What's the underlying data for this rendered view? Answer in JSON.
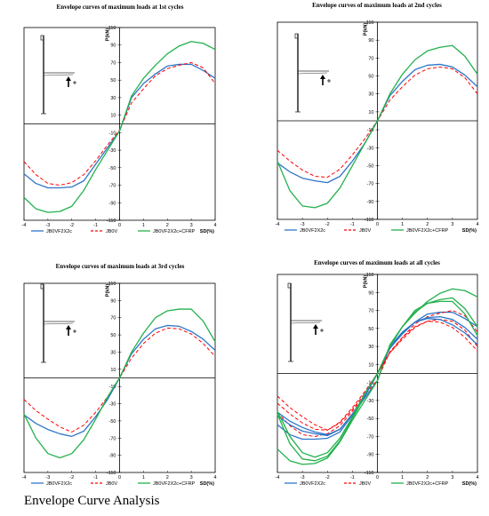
{
  "caption": "Envelope Curve Analysis",
  "colors": {
    "blue": "#2e75c8",
    "red": "#ff0000",
    "green": "#22b14c"
  },
  "chart_data": [
    {
      "type": "line",
      "title": "Envelope curves of maximum loads at 1st cycles",
      "xlabel": "SD(%)",
      "ylabel": "P(kN)",
      "xlim": [
        -4,
        4
      ],
      "ylim": [
        -110,
        110
      ],
      "xticks": [
        -4,
        -3,
        -2,
        -1,
        0,
        1,
        2,
        3,
        4
      ],
      "yticks": [
        -110,
        -90,
        -70,
        -50,
        -30,
        -10,
        10,
        30,
        50,
        70,
        90,
        110
      ],
      "legend_position": "bottom",
      "series": [
        {
          "name": "JB0VF2X2c",
          "color": "#2e75c8",
          "dash": false,
          "x": [
            -4,
            -3.5,
            -3,
            -2.5,
            -2,
            -1.5,
            -1,
            -0.5,
            0,
            0.5,
            1,
            1.5,
            2,
            2.5,
            3,
            3.5,
            4
          ],
          "y": [
            -57,
            -68,
            -73,
            -73,
            -72,
            -65,
            -46,
            -27,
            -8,
            30,
            46,
            57,
            66,
            68,
            68,
            61,
            52
          ]
        },
        {
          "name": "JB0V",
          "color": "#ff0000",
          "dash": true,
          "x": [
            -4,
            -3.5,
            -3,
            -2.5,
            -2,
            -1.5,
            -1,
            -0.5,
            0,
            0.5,
            1,
            1.5,
            2,
            2.5,
            3,
            3.5,
            4
          ],
          "y": [
            -43,
            -58,
            -68,
            -70,
            -67,
            -58,
            -42,
            -24,
            -7,
            24,
            40,
            55,
            63,
            67,
            70,
            64,
            46
          ]
        },
        {
          "name": "JB0VF2X2c+CFRP",
          "color": "#22b14c",
          "dash": false,
          "x": [
            -4,
            -3.5,
            -3,
            -2.5,
            -2,
            -1.5,
            -1,
            -0.5,
            0,
            0.5,
            1,
            1.5,
            2,
            2.5,
            3,
            3.5,
            4
          ],
          "y": [
            -84,
            -97,
            -101,
            -100,
            -94,
            -76,
            -52,
            -30,
            -8,
            32,
            52,
            67,
            80,
            89,
            94,
            92,
            85
          ]
        }
      ]
    },
    {
      "type": "line",
      "title": "Envelope curves of maximum loads at 2nd cycles",
      "xlabel": "SD(%)",
      "ylabel": "P(kN)",
      "xlim": [
        -4,
        4
      ],
      "ylim": [
        -110,
        110
      ],
      "xticks": [
        -4,
        -3,
        -2,
        -1,
        0,
        1,
        2,
        3,
        4
      ],
      "yticks": [
        -110,
        -90,
        -70,
        -50,
        -30,
        -10,
        10,
        30,
        50,
        70,
        90,
        110
      ],
      "legend_position": "bottom",
      "series": [
        {
          "name": "JB0VF2X2c",
          "color": "#2e75c8",
          "dash": false,
          "x": [
            -4,
            -3.5,
            -3,
            -2.5,
            -2,
            -1.5,
            -1,
            -0.5,
            0,
            0.5,
            1,
            1.5,
            2,
            2.5,
            3,
            3.5,
            4
          ],
          "y": [
            -47,
            -57,
            -64,
            -67,
            -69,
            -62,
            -45,
            -25,
            0,
            28,
            44,
            57,
            62,
            63,
            60,
            51,
            38
          ]
        },
        {
          "name": "JB0V",
          "color": "#ff0000",
          "dash": true,
          "x": [
            -4,
            -3.5,
            -3,
            -2.5,
            -2,
            -1.5,
            -1,
            -0.5,
            0,
            0.5,
            1,
            1.5,
            2,
            2.5,
            3,
            3.5,
            4
          ],
          "y": [
            -33,
            -45,
            -55,
            -62,
            -63,
            -54,
            -38,
            -20,
            0,
            23,
            38,
            51,
            58,
            60,
            58,
            48,
            30
          ]
        },
        {
          "name": "JB0VF2X2c+CFRP",
          "color": "#22b14c",
          "dash": false,
          "x": [
            -4,
            -3.5,
            -3,
            -2.5,
            -2,
            -1.5,
            -1,
            -0.5,
            0,
            0.5,
            1,
            1.5,
            2,
            2.5,
            3,
            3.5,
            4
          ],
          "y": [
            -45,
            -78,
            -95,
            -97,
            -92,
            -75,
            -50,
            -25,
            0,
            30,
            52,
            68,
            78,
            82,
            84,
            72,
            52
          ]
        }
      ]
    },
    {
      "type": "line",
      "title": "Envelope curves of maximum loads at 3rd cycles",
      "xlabel": "SD(%)",
      "ylabel": "P(kN)",
      "xlim": [
        -4,
        4
      ],
      "ylim": [
        -110,
        110
      ],
      "xticks": [
        -4,
        -3,
        -2,
        -1,
        0,
        1,
        2,
        3,
        4
      ],
      "yticks": [
        -110,
        -90,
        -70,
        -50,
        -30,
        -10,
        10,
        30,
        50,
        70,
        90,
        110
      ],
      "legend_position": "bottom",
      "series": [
        {
          "name": "JB0VF2X2c",
          "color": "#2e75c8",
          "dash": false,
          "x": [
            -4,
            -3.5,
            -3,
            -2.5,
            -2,
            -1.5,
            -1,
            -0.5,
            0,
            0.5,
            1,
            1.5,
            2,
            2.5,
            3,
            3.5,
            4
          ],
          "y": [
            -43,
            -53,
            -60,
            -65,
            -68,
            -62,
            -45,
            -25,
            0,
            28,
            45,
            57,
            61,
            60,
            54,
            45,
            32
          ]
        },
        {
          "name": "JB0V",
          "color": "#ff0000",
          "dash": true,
          "x": [
            -4,
            -3.5,
            -3,
            -2.5,
            -2,
            -1.5,
            -1,
            -0.5,
            0,
            0.5,
            1,
            1.5,
            2,
            2.5,
            3,
            3.5,
            4
          ],
          "y": [
            -25,
            -38,
            -48,
            -57,
            -63,
            -55,
            -40,
            -22,
            0,
            23,
            40,
            52,
            58,
            57,
            51,
            40,
            25
          ]
        },
        {
          "name": "JB0VF2X2c+CFRP",
          "color": "#22b14c",
          "dash": false,
          "x": [
            -4,
            -3.5,
            -3,
            -2.5,
            -2,
            -1.5,
            -1,
            -0.5,
            0,
            0.5,
            1,
            1.5,
            2,
            2.5,
            3,
            3.5,
            4
          ],
          "y": [
            -42,
            -70,
            -88,
            -93,
            -88,
            -72,
            -48,
            -22,
            0,
            30,
            52,
            70,
            78,
            80,
            80,
            66,
            42
          ]
        }
      ]
    },
    {
      "type": "line",
      "title": "Envelope curves of maximum loads at all cycles",
      "xlabel": "SD(%)",
      "ylabel": "P(kN)",
      "xlim": [
        -4,
        4
      ],
      "ylim": [
        -110,
        110
      ],
      "xticks": [
        -4,
        -3,
        -2,
        -1,
        0,
        1,
        2,
        3,
        4
      ],
      "yticks": [
        -110,
        -90,
        -70,
        -50,
        -30,
        -10,
        10,
        30,
        50,
        70,
        90,
        110
      ],
      "legend_position": "bottom",
      "series": [
        {
          "name": "JB0VF2X2c",
          "color": "#2e75c8",
          "dash": false,
          "x": [
            -4,
            -3.5,
            -3,
            -2.5,
            -2,
            -1.5,
            -1,
            -0.5,
            0,
            0.5,
            1,
            1.5,
            2,
            2.5,
            3,
            3.5,
            4
          ],
          "y": [
            -57,
            -68,
            -73,
            -73,
            -72,
            -65,
            -46,
            -27,
            -8,
            30,
            46,
            57,
            66,
            68,
            68,
            61,
            52
          ]
        },
        {
          "name": "JB0V",
          "color": "#ff0000",
          "dash": true,
          "x": [
            -4,
            -3.5,
            -3,
            -2.5,
            -2,
            -1.5,
            -1,
            -0.5,
            0,
            0.5,
            1,
            1.5,
            2,
            2.5,
            3,
            3.5,
            4
          ],
          "y": [
            -43,
            -58,
            -68,
            -70,
            -67,
            -58,
            -42,
            -24,
            -7,
            24,
            40,
            55,
            63,
            67,
            70,
            64,
            46
          ]
        },
        {
          "name": "JB0VF2X2c+CFRP",
          "color": "#22b14c",
          "dash": false,
          "x": [
            -4,
            -3.5,
            -3,
            -2.5,
            -2,
            -1.5,
            -1,
            -0.5,
            0,
            0.5,
            1,
            1.5,
            2,
            2.5,
            3,
            3.5,
            4
          ],
          "y": [
            -84,
            -97,
            -101,
            -100,
            -94,
            -76,
            -52,
            -30,
            -8,
            32,
            52,
            67,
            80,
            89,
            94,
            92,
            85
          ]
        },
        {
          "name": "JB0VF2X2c",
          "color": "#2e75c8",
          "dash": false,
          "x": [
            -4,
            -3.5,
            -3,
            -2.5,
            -2,
            -1.5,
            -1,
            -0.5,
            0,
            0.5,
            1,
            1.5,
            2,
            2.5,
            3,
            3.5,
            4
          ],
          "y": [
            -47,
            -57,
            -64,
            -67,
            -69,
            -62,
            -45,
            -25,
            0,
            28,
            44,
            57,
            62,
            63,
            60,
            51,
            38
          ]
        },
        {
          "name": "JB0V",
          "color": "#ff0000",
          "dash": true,
          "x": [
            -4,
            -3.5,
            -3,
            -2.5,
            -2,
            -1.5,
            -1,
            -0.5,
            0,
            0.5,
            1,
            1.5,
            2,
            2.5,
            3,
            3.5,
            4
          ],
          "y": [
            -33,
            -45,
            -55,
            -62,
            -63,
            -54,
            -38,
            -20,
            0,
            23,
            38,
            51,
            58,
            60,
            58,
            48,
            30
          ]
        },
        {
          "name": "JB0VF2X2c+CFRP",
          "color": "#22b14c",
          "dash": false,
          "x": [
            -4,
            -3.5,
            -3,
            -2.5,
            -2,
            -1.5,
            -1,
            -0.5,
            0,
            0.5,
            1,
            1.5,
            2,
            2.5,
            3,
            3.5,
            4
          ],
          "y": [
            -45,
            -78,
            -95,
            -97,
            -92,
            -75,
            -50,
            -25,
            0,
            30,
            52,
            68,
            78,
            82,
            84,
            72,
            52
          ]
        },
        {
          "name": "JB0VF2X2c",
          "color": "#2e75c8",
          "dash": false,
          "x": [
            -4,
            -3.5,
            -3,
            -2.5,
            -2,
            -1.5,
            -1,
            -0.5,
            0,
            0.5,
            1,
            1.5,
            2,
            2.5,
            3,
            3.5,
            4
          ],
          "y": [
            -43,
            -53,
            -60,
            -65,
            -68,
            -62,
            -45,
            -25,
            0,
            28,
            45,
            57,
            61,
            60,
            54,
            45,
            32
          ]
        },
        {
          "name": "JB0V",
          "color": "#ff0000",
          "dash": true,
          "x": [
            -4,
            -3.5,
            -3,
            -2.5,
            -2,
            -1.5,
            -1,
            -0.5,
            0,
            0.5,
            1,
            1.5,
            2,
            2.5,
            3,
            3.5,
            4
          ],
          "y": [
            -25,
            -38,
            -48,
            -57,
            -63,
            -55,
            -40,
            -22,
            0,
            23,
            40,
            52,
            58,
            57,
            51,
            40,
            25
          ]
        },
        {
          "name": "JB0VF2X2c+CFRP",
          "color": "#22b14c",
          "dash": false,
          "x": [
            -4,
            -3.5,
            -3,
            -2.5,
            -2,
            -1.5,
            -1,
            -0.5,
            0,
            0.5,
            1,
            1.5,
            2,
            2.5,
            3,
            3.5,
            4
          ],
          "y": [
            -42,
            -70,
            -88,
            -93,
            -88,
            -72,
            -48,
            -22,
            0,
            30,
            52,
            70,
            78,
            80,
            80,
            66,
            42
          ]
        }
      ],
      "legend_entries": [
        "JB0VF2X2c",
        "JB0V",
        "JB0VF2X2c+CFRP"
      ]
    }
  ],
  "legend_labels": [
    {
      "blue": "JB0VF2X2c",
      "red": "JB0V",
      "green": "JB0VF2X2c+CFRP"
    },
    {
      "blue": "JB0VF2X2c",
      "red": "JB0V",
      "green": "JB0VF2X2c+CFRP"
    },
    {
      "blue": "JB0VF2X2c",
      "red": "JB0V",
      "green": "JB0VF2X2c+CFRP"
    },
    {
      "blue": "JB0VF2X2c",
      "red": "JB0V",
      "green": "JB0VF2X2c+CFRP"
    }
  ]
}
